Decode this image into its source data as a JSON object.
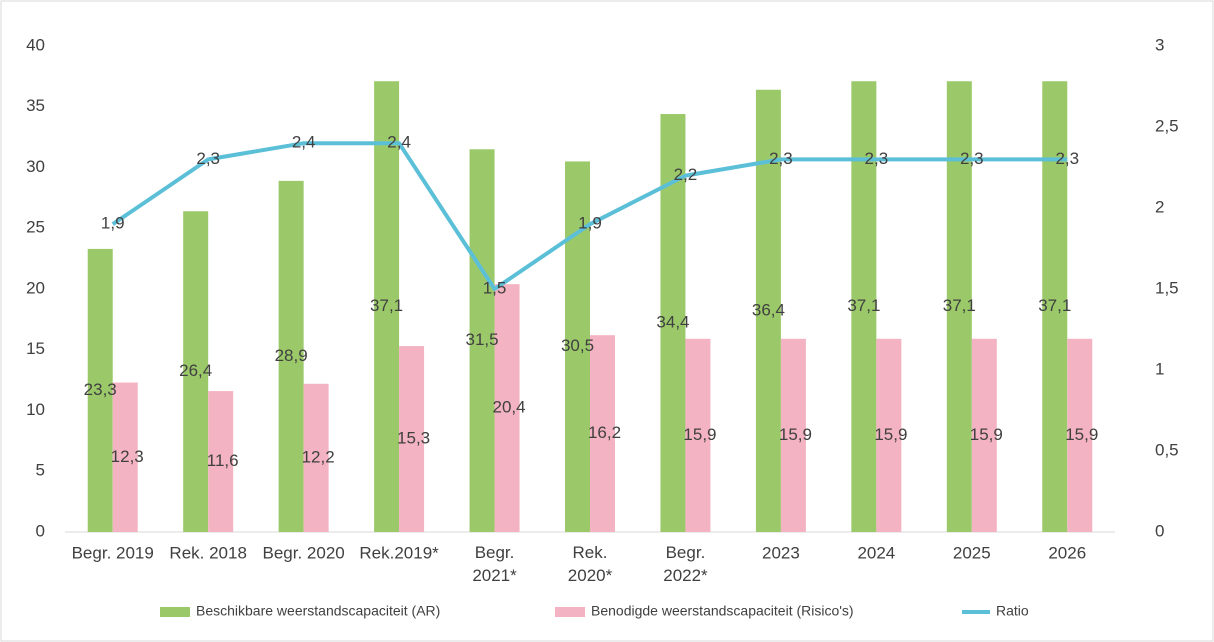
{
  "chart_data": {
    "type": "bar",
    "categories": [
      "Begr. 2019",
      "Rek. 2018",
      "Begr. 2020",
      "Rek.2019*",
      "Begr.\n2021*",
      "Rek.\n2020*",
      "Begr.\n2022*",
      "2023",
      "2024",
      "2025",
      "2026"
    ],
    "series": [
      {
        "name": "Beschikbare weerstandscapaciteit (AR)",
        "color": "#9bc96a",
        "type": "bar",
        "values": [
          23.3,
          26.4,
          28.9,
          37.1,
          31.5,
          30.5,
          34.4,
          36.4,
          37.1,
          37.1,
          37.1
        ],
        "value_labels": [
          "23,3",
          "26,4",
          "28,9",
          "37,1",
          "31,5",
          "30,5",
          "34,4",
          "36,4",
          "37,1",
          "37,1",
          "37,1"
        ]
      },
      {
        "name": "Benodigde weerstandscapaciteit (Risico's)",
        "color": "#f4b3c2",
        "type": "bar",
        "values": [
          12.3,
          11.6,
          12.2,
          15.3,
          20.4,
          16.2,
          15.9,
          15.9,
          15.9,
          15.9,
          15.9
        ],
        "value_labels": [
          "12,3",
          "11,6",
          "12,2",
          "15,3",
          "20,4",
          "16,2",
          "15,9",
          "15,9",
          "15,9",
          "15,9",
          "15,9"
        ]
      },
      {
        "name": "Ratio",
        "color": "#5bbfd8",
        "type": "line",
        "axis": "y2",
        "values": [
          1.9,
          2.3,
          2.4,
          2.4,
          1.5,
          1.9,
          2.2,
          2.3,
          2.3,
          2.3,
          2.3
        ],
        "value_labels": [
          "1,9",
          "2,3",
          "2,4",
          "2,4",
          "1,5",
          "1,9",
          "2,2",
          "2,3",
          "2,3",
          "2,3",
          "2,3"
        ]
      }
    ],
    "ylim": [
      0,
      40
    ],
    "yticks": [
      0,
      5,
      10,
      15,
      20,
      25,
      30,
      35,
      40
    ],
    "y2lim": [
      0,
      3
    ],
    "y2ticks": [
      0,
      {
        "value": 0.5,
        "label": "0,5"
      },
      1,
      {
        "value": 1.5,
        "label": "1,5"
      },
      2,
      {
        "value": 2.5,
        "label": "2,5"
      },
      3
    ],
    "legend": "bottom",
    "grid": false
  }
}
